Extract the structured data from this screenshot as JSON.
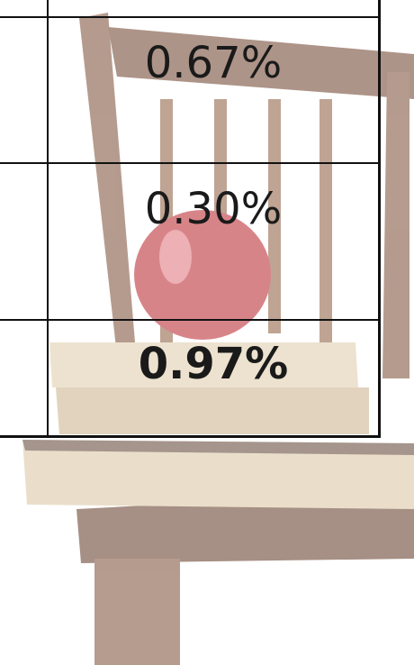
{
  "table": {
    "rows": [
      [
        "0.67%"
      ],
      [
        "0.30%"
      ],
      [
        "0.97%"
      ]
    ]
  }
}
